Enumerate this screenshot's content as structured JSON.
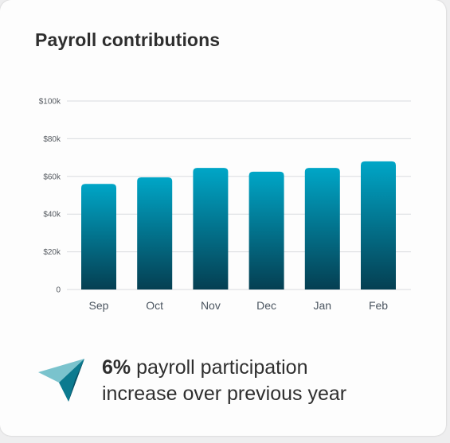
{
  "card": {
    "title": "Payroll contributions"
  },
  "chart_data": {
    "type": "bar",
    "title": "Payroll contributions",
    "xlabel": "",
    "ylabel": "",
    "categories": [
      "Sep",
      "Oct",
      "Nov",
      "Dec",
      "Jan",
      "Feb"
    ],
    "values": [
      56000,
      59500,
      64500,
      62500,
      64500,
      68000
    ],
    "ylim": [
      0,
      100000
    ],
    "yticks": [
      0,
      20000,
      40000,
      60000,
      80000,
      100000
    ],
    "ytick_labels": [
      "0",
      "$20k",
      "$40k",
      "$60k",
      "$80k",
      "$100k"
    ],
    "grid": true,
    "bar_color_top": "#00a6c7",
    "bar_color_bottom": "#053f52"
  },
  "highlight": {
    "icon": "paper-plane-icon",
    "value": "6%",
    "line1_rest": " payroll participation",
    "line2": "increase over previous year",
    "icon_colors": [
      "#7ac3cd",
      "#0c7a8f",
      "#0a4f63"
    ]
  }
}
